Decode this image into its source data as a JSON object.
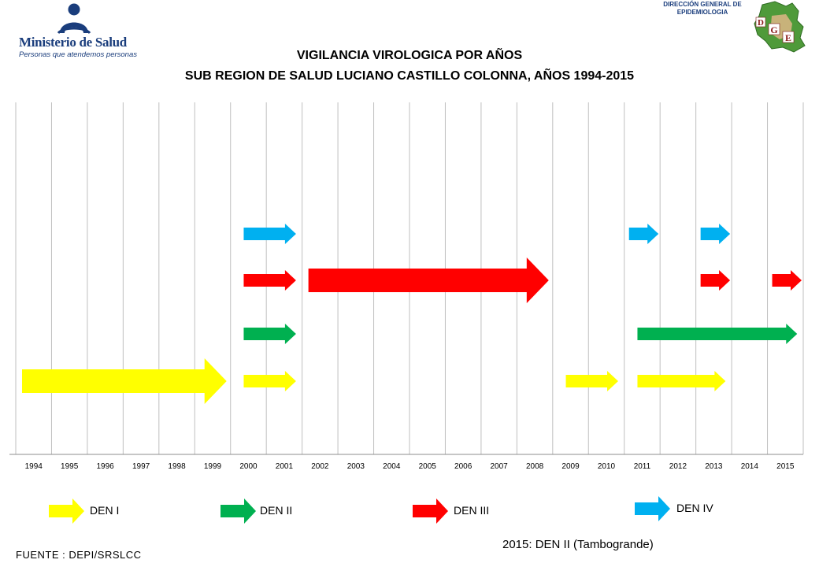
{
  "header": {
    "logo_name": "Ministerio de Salud",
    "logo_tagline": "Personas que atendemos personas",
    "dge_line1": "DIRECCIÓN GENERAL DE",
    "dge_line2": "EPIDEMIOLOGIA",
    "dge_logo_letters": "DGE",
    "title_line1": "VIGILANCIA VIROLOGICA POR AÑOS",
    "title_line2": "SUB REGION DE SALUD LUCIANO CASTILLO COLONNA, AÑOS 1994-2015"
  },
  "colors": {
    "DEN I": "#ffff00",
    "DEN II": "#00b050",
    "DEN III": "#ff0000",
    "DEN IV": "#00b0f0",
    "grid": "#bfbfbf",
    "logo_blue": "#1a3d7c"
  },
  "chart_data": {
    "type": "timeline",
    "title": "VIGILANCIA VIROLOGICA POR AÑOS",
    "subtitle": "SUB REGION DE SALUD LUCIANO CASTILLO COLONNA, AÑOS 1994-2015",
    "categories": [
      "1994",
      "1995",
      "1996",
      "1997",
      "1998",
      "1999",
      "2000",
      "2001",
      "2002",
      "2003",
      "2004",
      "2005",
      "2006",
      "2007",
      "2008",
      "2009",
      "2010",
      "2011",
      "2012",
      "2013",
      "2014",
      "2015"
    ],
    "grid": true,
    "series": [
      {
        "name": "DEN I",
        "color": "#ffff00",
        "intervals": [
          {
            "start": 1994,
            "end": 1999,
            "size": "large"
          },
          {
            "start": 2000,
            "end": 2001,
            "size": "small"
          },
          {
            "start": 2009,
            "end": 2010,
            "size": "small"
          },
          {
            "start": 2011,
            "end": 2013,
            "size": "small"
          }
        ]
      },
      {
        "name": "DEN II",
        "color": "#00b050",
        "intervals": [
          {
            "start": 2000,
            "end": 2001,
            "size": "small"
          },
          {
            "start": 2011,
            "end": 2015,
            "size": "small"
          }
        ]
      },
      {
        "name": "DEN III",
        "color": "#ff0000",
        "intervals": [
          {
            "start": 2000,
            "end": 2001,
            "size": "small"
          },
          {
            "start": 2002,
            "end": 2008,
            "size": "large"
          },
          {
            "start": 2013,
            "end": 2013,
            "size": "small"
          },
          {
            "start": 2015,
            "end": 2015,
            "size": "small"
          }
        ]
      },
      {
        "name": "DEN IV",
        "color": "#00b0f0",
        "intervals": [
          {
            "start": 2000,
            "end": 2001,
            "size": "small"
          },
          {
            "start": 2011,
            "end": 2011,
            "size": "small"
          },
          {
            "start": 2013,
            "end": 2013,
            "size": "small"
          }
        ]
      }
    ]
  },
  "legend": [
    {
      "label": "DEN I"
    },
    {
      "label": "DEN II"
    },
    {
      "label": "DEN III"
    },
    {
      "label": "DEN IV"
    }
  ],
  "footer": {
    "source": "FUENTE : DEPI/SRSLCC",
    "note": "2015: DEN II (Tambogrande)"
  }
}
